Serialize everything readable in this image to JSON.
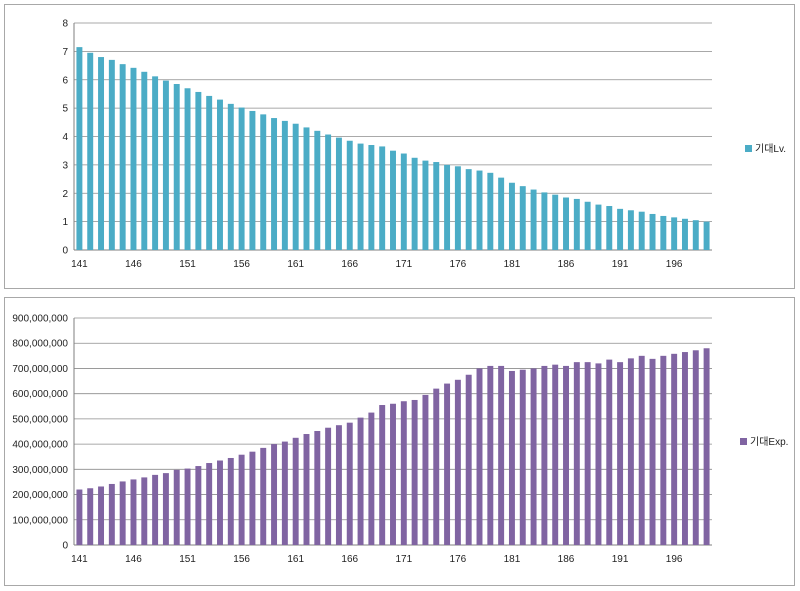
{
  "chart_data": [
    {
      "type": "bar",
      "title": "",
      "xlabel": "",
      "ylabel": "",
      "ylim": [
        0,
        8
      ],
      "grid": true,
      "legend": "right",
      "color": "#4bacc6",
      "x_tick_labels": [
        "141",
        "146",
        "151",
        "156",
        "161",
        "166",
        "171",
        "176",
        "181",
        "186",
        "191",
        "196"
      ],
      "y_tick_labels": [
        "0",
        "1",
        "2",
        "3",
        "4",
        "5",
        "6",
        "7",
        "8"
      ],
      "series": [
        {
          "name": "기대Lv.",
          "x": [
            141,
            142,
            143,
            144,
            145,
            146,
            147,
            148,
            149,
            150,
            151,
            152,
            153,
            154,
            155,
            156,
            157,
            158,
            159,
            160,
            161,
            162,
            163,
            164,
            165,
            166,
            167,
            168,
            169,
            170,
            171,
            172,
            173,
            174,
            175,
            176,
            177,
            178,
            179,
            180,
            181,
            182,
            183,
            184,
            185,
            186,
            187,
            188,
            189,
            190,
            191,
            192,
            193,
            194,
            195,
            196,
            197,
            198,
            199
          ],
          "values": [
            7.15,
            6.95,
            6.8,
            6.7,
            6.55,
            6.42,
            6.28,
            6.12,
            5.97,
            5.85,
            5.7,
            5.57,
            5.43,
            5.3,
            5.15,
            5.02,
            4.9,
            4.78,
            4.65,
            4.55,
            4.45,
            4.32,
            4.2,
            4.07,
            3.96,
            3.85,
            3.75,
            3.7,
            3.65,
            3.5,
            3.4,
            3.25,
            3.15,
            3.1,
            3.0,
            2.95,
            2.85,
            2.8,
            2.72,
            2.55,
            2.37,
            2.25,
            2.13,
            2.03,
            1.95,
            1.85,
            1.8,
            1.7,
            1.6,
            1.55,
            1.45,
            1.4,
            1.35,
            1.27,
            1.2,
            1.15,
            1.1,
            1.05,
            1.0
          ]
        }
      ]
    },
    {
      "type": "bar",
      "title": "",
      "xlabel": "",
      "ylabel": "",
      "ylim": [
        0,
        900000000
      ],
      "grid": true,
      "legend": "right",
      "color": "#8064a2",
      "x_tick_labels": [
        "141",
        "146",
        "151",
        "156",
        "161",
        "166",
        "171",
        "176",
        "181",
        "186",
        "191",
        "196"
      ],
      "y_tick_labels": [
        "0",
        "100,000,000",
        "200,000,000",
        "300,000,000",
        "400,000,000",
        "500,000,000",
        "600,000,000",
        "700,000,000",
        "800,000,000",
        "900,000,000"
      ],
      "series": [
        {
          "name": "기대Exp.",
          "x": [
            141,
            142,
            143,
            144,
            145,
            146,
            147,
            148,
            149,
            150,
            151,
            152,
            153,
            154,
            155,
            156,
            157,
            158,
            159,
            160,
            161,
            162,
            163,
            164,
            165,
            166,
            167,
            168,
            169,
            170,
            171,
            172,
            173,
            174,
            175,
            176,
            177,
            178,
            179,
            180,
            181,
            182,
            183,
            184,
            185,
            186,
            187,
            188,
            189,
            190,
            191,
            192,
            193,
            194,
            195,
            196,
            197,
            198,
            199
          ],
          "values": [
            220000000,
            225000000,
            232000000,
            242000000,
            252000000,
            260000000,
            268000000,
            278000000,
            285000000,
            298000000,
            303000000,
            313000000,
            325000000,
            335000000,
            345000000,
            358000000,
            370000000,
            385000000,
            400000000,
            410000000,
            425000000,
            440000000,
            452000000,
            465000000,
            475000000,
            485000000,
            505000000,
            525000000,
            555000000,
            560000000,
            570000000,
            575000000,
            595000000,
            620000000,
            640000000,
            655000000,
            675000000,
            700000000,
            710000000,
            710000000,
            690000000,
            695000000,
            700000000,
            710000000,
            715000000,
            710000000,
            725000000,
            725000000,
            720000000,
            735000000,
            725000000,
            740000000,
            750000000,
            738000000,
            750000000,
            758000000,
            765000000,
            772000000,
            780000000
          ]
        }
      ]
    }
  ]
}
